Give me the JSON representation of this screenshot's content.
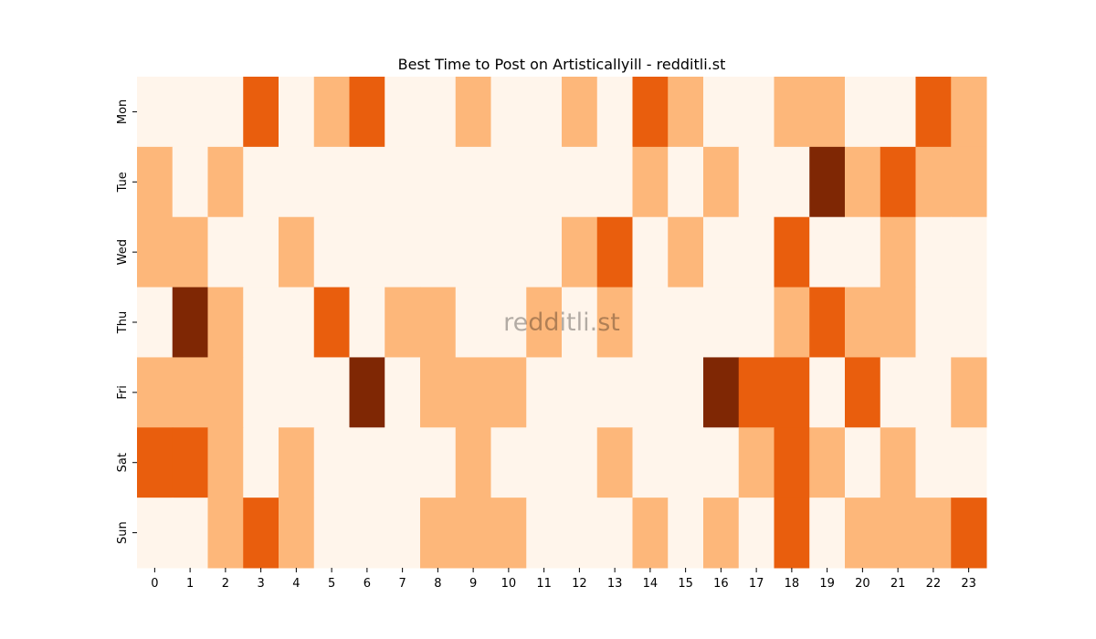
{
  "chart_data": {
    "type": "heatmap",
    "title": "Best Time to Post on Artisticallyill - redditli.st",
    "xlabel": "",
    "ylabel": "",
    "x": [
      "0",
      "1",
      "2",
      "3",
      "4",
      "5",
      "6",
      "7",
      "8",
      "9",
      "10",
      "11",
      "12",
      "13",
      "14",
      "15",
      "16",
      "17",
      "18",
      "19",
      "20",
      "21",
      "22",
      "23"
    ],
    "y": [
      "Mon",
      "Tue",
      "Wed",
      "Thu",
      "Fri",
      "Sat",
      "Sun"
    ],
    "values": [
      [
        0,
        0,
        0,
        2,
        0,
        1,
        2,
        0,
        0,
        1,
        0,
        0,
        1,
        0,
        2,
        1,
        0,
        0,
        1,
        1,
        0,
        0,
        2,
        1
      ],
      [
        1,
        0,
        1,
        0,
        0,
        0,
        0,
        0,
        0,
        0,
        0,
        0,
        0,
        0,
        1,
        0,
        1,
        0,
        0,
        3,
        1,
        2,
        1,
        1
      ],
      [
        1,
        1,
        0,
        0,
        1,
        0,
        0,
        0,
        0,
        0,
        0,
        0,
        1,
        2,
        0,
        1,
        0,
        0,
        2,
        0,
        0,
        1,
        0,
        0
      ],
      [
        0,
        3,
        1,
        0,
        0,
        2,
        0,
        1,
        1,
        0,
        0,
        1,
        0,
        1,
        0,
        0,
        0,
        0,
        1,
        2,
        1,
        1,
        0,
        0
      ],
      [
        1,
        1,
        1,
        0,
        0,
        0,
        3,
        0,
        1,
        1,
        1,
        0,
        0,
        0,
        0,
        0,
        3,
        2,
        2,
        0,
        2,
        0,
        0,
        1
      ],
      [
        2,
        2,
        1,
        0,
        1,
        0,
        0,
        0,
        0,
        1,
        0,
        0,
        0,
        1,
        0,
        0,
        0,
        1,
        2,
        1,
        0,
        1,
        0,
        0
      ],
      [
        0,
        0,
        1,
        2,
        1,
        0,
        0,
        0,
        1,
        1,
        1,
        0,
        0,
        0,
        1,
        0,
        1,
        0,
        2,
        0,
        1,
        1,
        1,
        2
      ]
    ],
    "color_scale": [
      "#fff5eb",
      "#fdb77a",
      "#e95e0d",
      "#7f2704"
    ],
    "colorbar": false,
    "grid": false,
    "watermark": "redditli.st"
  }
}
